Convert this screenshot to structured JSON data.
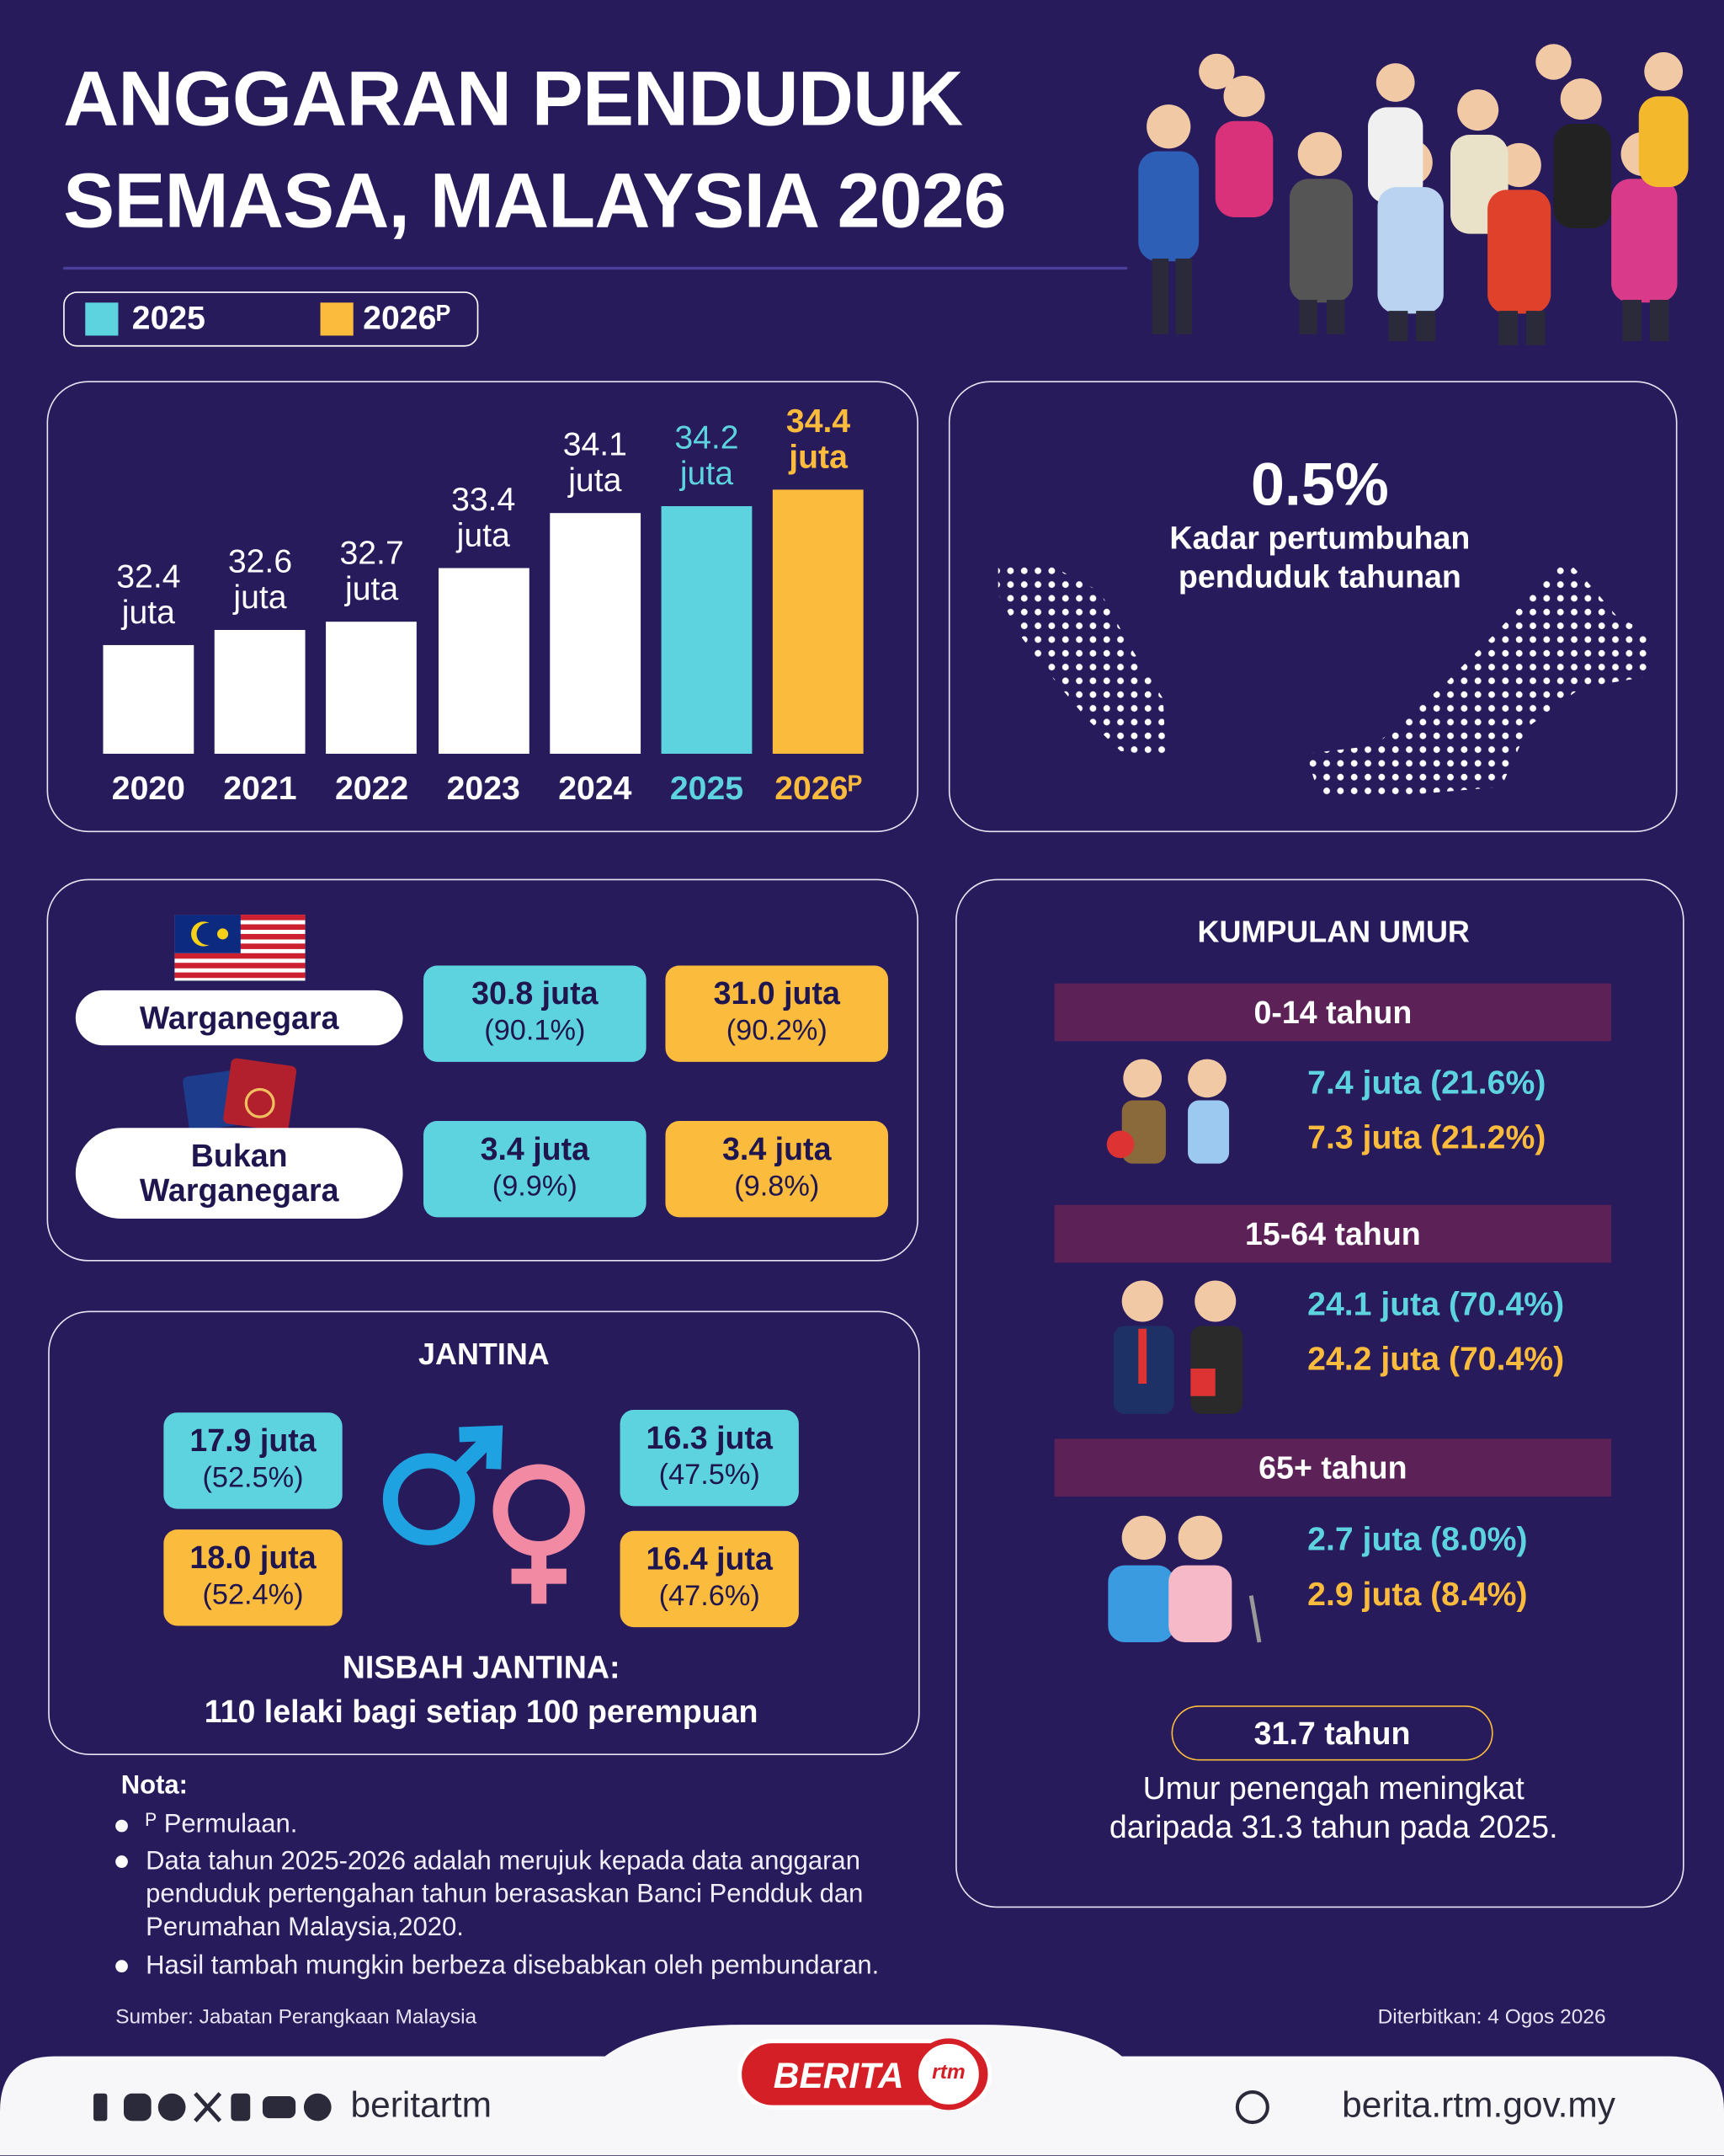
{
  "header": {
    "title_line1": "ANGGARAN PENDUDUK",
    "title_line2": "SEMASA, MALAYSIA 2026"
  },
  "legend": [
    {
      "label": "2025",
      "color": "#5dd3df"
    },
    {
      "label": "2026ᴾ",
      "color": "#fbbb3d"
    }
  ],
  "population_chart": {
    "type": "bar",
    "categories": [
      "2020",
      "2021",
      "2022",
      "2023",
      "2024",
      "2025",
      "2026ᴾ"
    ],
    "values": [
      32.4,
      32.6,
      32.7,
      33.4,
      34.1,
      34.2,
      34.4
    ],
    "value_labels": [
      "32.4 juta",
      "32.6 juta",
      "32.7 juta",
      "33.4 juta",
      "34.1 juta",
      "34.2 juta",
      "34.4 juta"
    ],
    "colors": [
      "#ffffff",
      "#ffffff",
      "#ffffff",
      "#ffffff",
      "#ffffff",
      "#5dd3df",
      "#fbbb3d"
    ],
    "ylim": [
      31,
      34.6
    ]
  },
  "growth": {
    "value_label": "0.5%",
    "caption_line1": "Kadar pertumbuhan",
    "caption_line2": "penduduk tahunan"
  },
  "citizenship": {
    "rows": [
      {
        "label": "Warganegara",
        "cells": [
          [
            "30.8 juta",
            "(90.1%)"
          ],
          [
            "31.0 juta",
            "(90.2%)"
          ]
        ]
      },
      {
        "label": "Bukan Warganegara",
        "cells": [
          [
            "3.4 juta",
            "(9.9%)"
          ],
          [
            "3.4 juta",
            "(9.8%)"
          ]
        ]
      }
    ]
  },
  "gender": {
    "title": "JANTINA",
    "male": [
      [
        "17.9 juta",
        "(52.5%)"
      ],
      [
        "18.0 juta",
        "(52.4%)"
      ]
    ],
    "female": [
      [
        "16.3 juta",
        "(47.5%)"
      ],
      [
        "16.4 juta",
        "(47.6%)"
      ]
    ],
    "ratio_title": "NISBAH JANTINA:",
    "ratio_text": "110 lelaki bagi setiap 100 perempuan"
  },
  "age": {
    "title": "KUMPULAN UMUR",
    "groups": [
      {
        "label": "0-14 tahun",
        "values": [
          "7.4 juta (21.6%)",
          "7.3 juta (21.2%)"
        ]
      },
      {
        "label": "15-64 tahun",
        "values": [
          "24.1 juta (70.4%)",
          "24.2 juta (70.4%)"
        ]
      },
      {
        "label": "65+ tahun",
        "values": [
          "2.7 juta (8.0%)",
          "2.9 juta (8.4%)"
        ]
      }
    ],
    "median": {
      "value": "31.7 tahun",
      "caption_line1": "Umur penengah meningkat",
      "caption_line2": "daripada 31.3 tahun pada 2025."
    }
  },
  "notes": {
    "title": "Nota:",
    "items": [
      "ᴾ Permulaan.",
      "Data tahun 2025-2026 adalah merujuk kepada data anggaran penduduk pertengahan tahun berasaskan Banci Pendduk dan Perumahan Malaysia,2020.",
      "Hasil tambah mungkin berbeza disebabkan oleh pembundaran."
    ]
  },
  "source": "Sumber: Jabatan Perangkaan Malaysia",
  "published": "Diterbitkan: 4 Ogos 2026",
  "footer": {
    "handle": "beritartm",
    "logo_text": "BERITA",
    "logo_badge": "rtm",
    "website": "berita.rtm.gov.my"
  }
}
